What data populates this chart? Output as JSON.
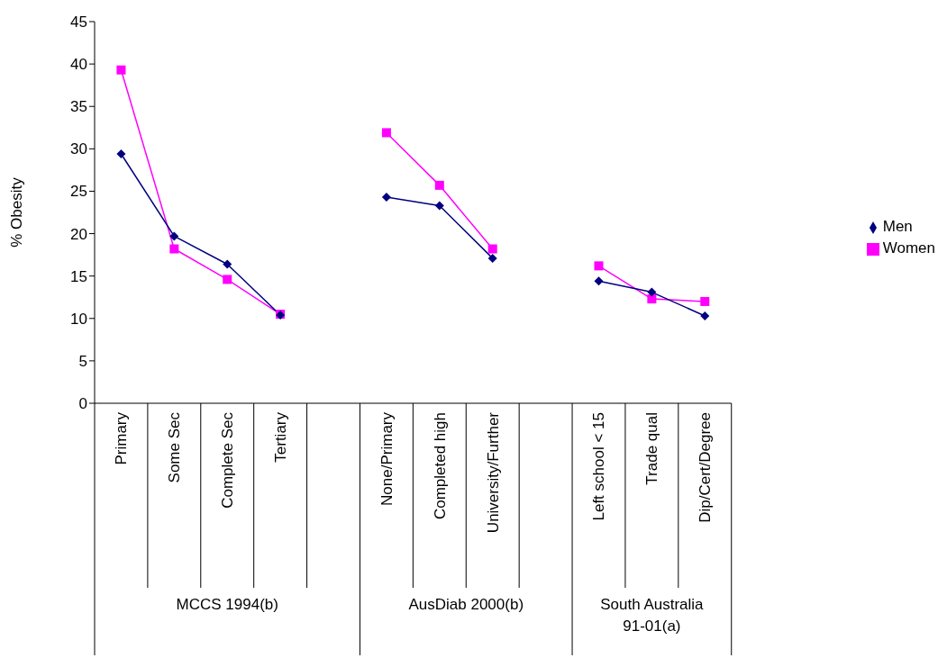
{
  "chart_data": {
    "type": "line",
    "ylabel": "% Obesity",
    "categories": [
      "Primary",
      "Some Sec",
      "Complete Sec",
      "Tertiary",
      null,
      "None/Primary",
      "Completed high",
      "University/Further",
      null,
      "Left school < 15",
      "Trade qual",
      "Dip/Cert/Degree"
    ],
    "series": [
      {
        "name": "Men",
        "color": "#000080",
        "marker": "diamond",
        "values": [
          29.4,
          19.7,
          16.4,
          10.4,
          null,
          24.3,
          23.3,
          17.1,
          null,
          14.4,
          13.1,
          10.3
        ]
      },
      {
        "name": "Women",
        "color": "#ff00ff",
        "marker": "square",
        "values": [
          39.3,
          18.2,
          14.6,
          10.5,
          null,
          31.9,
          25.7,
          18.2,
          null,
          16.2,
          12.3,
          12.0
        ]
      }
    ],
    "ylim": [
      0,
      45
    ],
    "yticks": [
      0,
      5,
      10,
      15,
      20,
      25,
      30,
      35,
      40,
      45
    ],
    "grid": false,
    "legend": "right",
    "annotations": [
      "MCCS 1994(b)",
      "AusDiab 2000(b)",
      "South Australia 91-01(a)"
    ]
  }
}
